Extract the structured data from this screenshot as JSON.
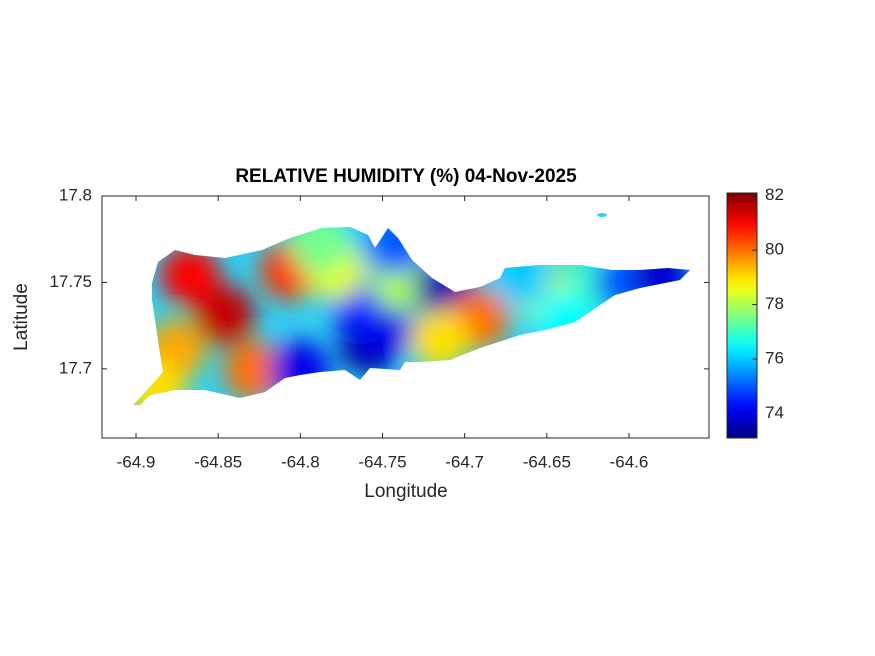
{
  "chart_data": {
    "type": "contourf",
    "title": "RELATIVE HUMIDITY (%) 04-Nov-2025",
    "x_label": "Longitude",
    "y_label": "Latitude",
    "xlim": [
      -64.9207,
      -64.5513
    ],
    "ylim": [
      17.66,
      17.8
    ],
    "xticks": [
      -64.9,
      -64.85,
      -64.8,
      -64.75,
      -64.7,
      -64.65,
      -64.6
    ],
    "yticks": [
      17.7,
      17.75,
      17.8
    ],
    "clim": [
      73.1,
      82.1
    ],
    "cticks": [
      74,
      76,
      78,
      80,
      82
    ],
    "colormap": "jet",
    "points": {
      "x": [
        -64.846,
        -64.867,
        -64.806,
        -64.876,
        -64.888,
        -64.828,
        -64.8,
        -64.758,
        -64.749,
        -64.764,
        -64.773,
        -64.779,
        -64.739,
        -64.742,
        -64.712,
        -64.691,
        -64.715,
        -64.654,
        -64.618,
        -64.603,
        -64.581,
        -64.666,
        -64.639,
        -64.788
      ],
      "y": [
        17.731,
        17.754,
        17.757,
        17.711,
        17.688,
        17.699,
        17.699,
        17.714,
        17.723,
        17.737,
        17.775,
        17.757,
        17.751,
        17.772,
        17.746,
        17.729,
        17.717,
        17.746,
        17.749,
        17.75,
        17.754,
        17.754,
        17.728,
        17.772
      ],
      "values": [
        81.5,
        81,
        80.5,
        79.5,
        79,
        80,
        74,
        73.3,
        74,
        74.5,
        76,
        78.5,
        78,
        75,
        73.5,
        80,
        79,
        78,
        77,
        75,
        73.8,
        76,
        76.5,
        77.5
      ]
    }
  }
}
